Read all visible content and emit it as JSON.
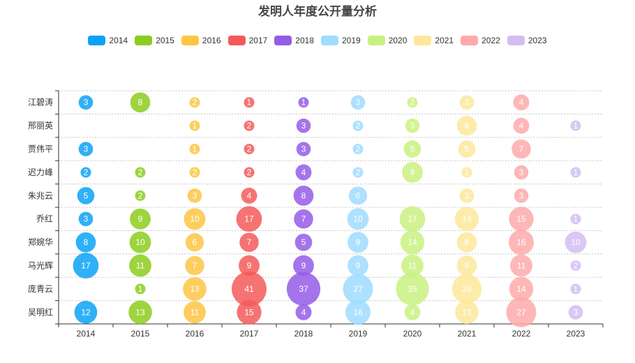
{
  "chart_data": {
    "type": "scatter",
    "title": "发明人年度公开量分析",
    "categories": [
      "2014",
      "2015",
      "2016",
      "2017",
      "2018",
      "2019",
      "2020",
      "2021",
      "2022",
      "2023"
    ],
    "inventors": [
      "江碧涛",
      "邢丽英",
      "贾伟平",
      "迟力峰",
      "朱兆云",
      "乔红",
      "郑婉华",
      "马光辉",
      "庞青云",
      "吴明红"
    ],
    "series": [
      {
        "name": "2014",
        "color": "#0aa2f7",
        "values": [
          3,
          null,
          3,
          2,
          5,
          3,
          8,
          17,
          null,
          12
        ]
      },
      {
        "name": "2015",
        "color": "#8ccc1d",
        "values": [
          8,
          null,
          null,
          2,
          2,
          9,
          10,
          11,
          1,
          13
        ]
      },
      {
        "name": "2016",
        "color": "#fdc643",
        "values": [
          2,
          1,
          1,
          2,
          3,
          10,
          6,
          7,
          13,
          11
        ]
      },
      {
        "name": "2017",
        "color": "#f55a5a",
        "values": [
          1,
          2,
          2,
          2,
          4,
          17,
          7,
          9,
          41,
          15
        ]
      },
      {
        "name": "2018",
        "color": "#955ce8",
        "values": [
          1,
          3,
          3,
          4,
          8,
          7,
          5,
          9,
          37,
          4
        ]
      },
      {
        "name": "2019",
        "color": "#9fdcff",
        "values": [
          3,
          2,
          2,
          2,
          6,
          10,
          9,
          9,
          27,
          16
        ]
      },
      {
        "name": "2020",
        "color": "#caf180",
        "values": [
          2,
          3,
          5,
          9,
          null,
          17,
          14,
          11,
          35,
          4
        ]
      },
      {
        "name": "2021",
        "color": "#fde79a",
        "values": [
          3,
          8,
          5,
          1,
          3,
          14,
          8,
          8,
          26,
          13
        ]
      },
      {
        "name": "2022",
        "color": "#feaaaa",
        "values": [
          4,
          4,
          7,
          3,
          3,
          15,
          16,
          11,
          14,
          27
        ]
      },
      {
        "name": "2023",
        "color": "#d2bdf2",
        "values": [
          null,
          1,
          null,
          1,
          null,
          1,
          10,
          2,
          1,
          3
        ]
      }
    ],
    "legend_position": "top-center",
    "grid": "horizontal-dotted",
    "xlabel": "",
    "ylabel": ""
  }
}
